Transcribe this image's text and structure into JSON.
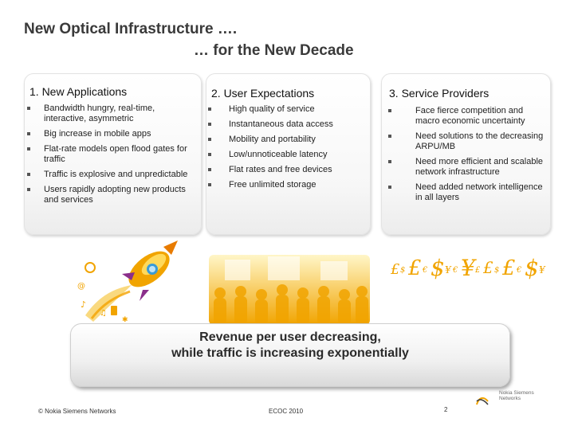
{
  "slide": {
    "title_line1": "New Optical Infrastructure ….",
    "title_line2": "… for the New Decade"
  },
  "columns": [
    {
      "heading": "1. New Applications",
      "items": [
        "Bandwidth hungry, real-time, interactive, asymmetric",
        "Big increase in mobile apps",
        "Flat-rate models open flood gates for traffic",
        "Traffic is explosive and unpredictable",
        "Users rapidly adopting new products and services"
      ]
    },
    {
      "heading": "2. User Expectations",
      "items": [
        "High quality of service",
        "Instantaneous data access",
        "Mobility and portability",
        "Low/unnoticeable latency",
        "Flat rates and free devices",
        "Free unlimited storage"
      ]
    },
    {
      "heading": "3. Service Providers",
      "items": [
        "Face fierce competition and macro economic uncertainty",
        "Need solutions to the decreasing ARPU/MB",
        "Need more efficient and scalable network infrastructure",
        "Need added network intelligence in all layers"
      ]
    }
  ],
  "banner": {
    "line1": "Revenue per user decreasing,",
    "line2": "while traffic is increasing exponentially"
  },
  "footer": {
    "copyright": "© Nokia Siemens Networks",
    "event": "ECOC 2010",
    "page": "2",
    "logo_text": "Nokia Siemens Networks"
  },
  "colors": {
    "accent": "#f1a400",
    "title": "#3a3a3a"
  }
}
